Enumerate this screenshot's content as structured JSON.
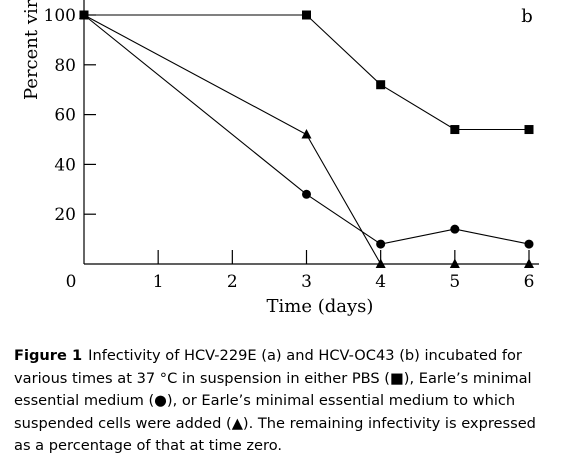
{
  "chart_data": {
    "type": "line",
    "panel_label": "b",
    "xlabel": "Time (days)",
    "ylabel": "Percent virus",
    "xlim": [
      0,
      6
    ],
    "ylim": [
      0,
      100
    ],
    "x_ticks": [
      {
        "value": 0,
        "label": "0"
      },
      {
        "value": 1,
        "label": "1"
      },
      {
        "value": 2,
        "label": "2"
      },
      {
        "value": 3,
        "label": "3"
      },
      {
        "value": 4,
        "label": "4"
      },
      {
        "value": 5,
        "label": "5"
      },
      {
        "value": 6,
        "label": "6"
      }
    ],
    "y_ticks": [
      {
        "value": 20,
        "label": "20"
      },
      {
        "value": 40,
        "label": "40"
      },
      {
        "value": 60,
        "label": "60"
      },
      {
        "value": 80,
        "label": "80"
      },
      {
        "value": 100,
        "label": "100"
      }
    ],
    "grid": false,
    "series": [
      {
        "marker": "square",
        "points": [
          [
            0,
            100
          ],
          [
            3,
            100
          ],
          [
            4,
            72
          ],
          [
            5,
            54
          ],
          [
            6,
            54
          ]
        ]
      },
      {
        "marker": "circle",
        "points": [
          [
            0,
            100
          ],
          [
            3,
            28
          ],
          [
            4,
            8
          ],
          [
            5,
            14
          ],
          [
            6,
            8
          ]
        ]
      },
      {
        "marker": "triangle",
        "points": [
          [
            0,
            100
          ],
          [
            3,
            52
          ],
          [
            4,
            0
          ],
          [
            5,
            0
          ],
          [
            6,
            0
          ]
        ]
      }
    ]
  },
  "caption": {
    "figure_label": "Figure 1",
    "text": "Infectivity of HCV-229E (a) and HCV-OC43 (b) incubated for various times at 37 °C in suspension in either PBS (■), Earle’s minimal essential medium (●), or Earle’s minimal essential medium to which suspended cells were added (▲). The remaining infectivity is expressed as a percentage of that at time zero."
  }
}
